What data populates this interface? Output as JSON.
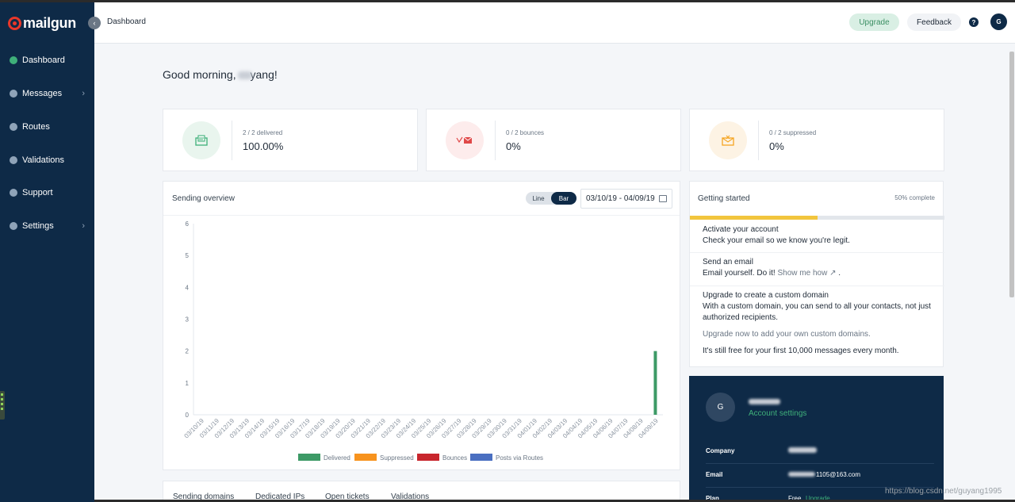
{
  "brand": {
    "name": "mailgun"
  },
  "sidebar": {
    "items": [
      {
        "label": "Dashboard",
        "icon": "dashboard-icon",
        "active": true
      },
      {
        "label": "Messages",
        "icon": "paper-plane-icon",
        "chevron": true
      },
      {
        "label": "Routes",
        "icon": "routes-icon"
      },
      {
        "label": "Validations",
        "icon": "validations-icon"
      },
      {
        "label": "Support",
        "icon": "help-circle-icon"
      },
      {
        "label": "Settings",
        "icon": "gear-icon",
        "chevron": true
      }
    ]
  },
  "header": {
    "breadcrumb": "Dashboard",
    "upgrade": "Upgrade",
    "feedback": "Feedback",
    "help": "?",
    "avatar": "G"
  },
  "greeting": {
    "prefix": "Good morning,",
    "suffix": "yang!"
  },
  "stats": [
    {
      "label": "2 / 2 delivered",
      "value": "100.00%",
      "icon": "delivered-envelope-icon",
      "color": "#3fb07a"
    },
    {
      "label": "0 / 2 bounces",
      "value": "0%",
      "icon": "bounced-envelope-icon",
      "color": "#e04848"
    },
    {
      "label": "0 / 2 suppressed",
      "value": "0%",
      "icon": "suppressed-envelope-icon",
      "color": "#f5a623"
    }
  ],
  "overview": {
    "title": "Sending overview",
    "toggle": [
      "Line",
      "Bar"
    ],
    "selected": "Bar",
    "date_range": "03/10/19 - 04/09/19"
  },
  "chart_data": {
    "type": "bar",
    "categories": [
      "03/10/19",
      "03/11/19",
      "03/12/19",
      "03/13/19",
      "03/14/19",
      "03/15/19",
      "03/16/19",
      "03/17/19",
      "03/18/19",
      "03/19/19",
      "03/20/19",
      "03/21/19",
      "03/22/19",
      "03/23/19",
      "03/24/19",
      "03/25/19",
      "03/26/19",
      "03/27/19",
      "03/28/19",
      "03/29/19",
      "03/30/19",
      "03/31/19",
      "04/01/19",
      "04/02/19",
      "04/03/19",
      "04/04/19",
      "04/05/19",
      "04/06/19",
      "04/07/19",
      "04/08/19",
      "04/09/19"
    ],
    "series": [
      {
        "name": "Delivered",
        "color": "#3d9a66",
        "values": [
          0,
          0,
          0,
          0,
          0,
          0,
          0,
          0,
          0,
          0,
          0,
          0,
          0,
          0,
          0,
          0,
          0,
          0,
          0,
          0,
          0,
          0,
          0,
          0,
          0,
          0,
          0,
          0,
          0,
          0,
          2
        ]
      },
      {
        "name": "Suppressed",
        "color": "#f7931e",
        "values": [
          0,
          0,
          0,
          0,
          0,
          0,
          0,
          0,
          0,
          0,
          0,
          0,
          0,
          0,
          0,
          0,
          0,
          0,
          0,
          0,
          0,
          0,
          0,
          0,
          0,
          0,
          0,
          0,
          0,
          0,
          0
        ]
      },
      {
        "name": "Bounces",
        "color": "#c8262d",
        "values": [
          0,
          0,
          0,
          0,
          0,
          0,
          0,
          0,
          0,
          0,
          0,
          0,
          0,
          0,
          0,
          0,
          0,
          0,
          0,
          0,
          0,
          0,
          0,
          0,
          0,
          0,
          0,
          0,
          0,
          0,
          0
        ]
      },
      {
        "name": "Posts via Routes",
        "color": "#4a6fc1",
        "values": [
          0,
          0,
          0,
          0,
          0,
          0,
          0,
          0,
          0,
          0,
          0,
          0,
          0,
          0,
          0,
          0,
          0,
          0,
          0,
          0,
          0,
          0,
          0,
          0,
          0,
          0,
          0,
          0,
          0,
          0,
          0
        ]
      }
    ],
    "yticks": [
      0,
      1,
      2,
      3,
      4,
      5,
      6
    ],
    "ylim": [
      0,
      6
    ],
    "legend": "bottom"
  },
  "getting_started": {
    "title": "Getting started",
    "progress_label": "50% complete",
    "progress": 0.5,
    "steps": [
      {
        "title": "Activate your account",
        "desc": "Check your email so we know you're legit."
      },
      {
        "title": "Send an email",
        "desc": "Email yourself. Do it!",
        "link": "Show me how",
        "end": "."
      },
      {
        "title": "Upgrade to create a custom domain",
        "desc": "With a custom domain, you can send to all your contacts, not just authorized recipients."
      }
    ],
    "upgrade_note": "Upgrade now to add your own custom domains.",
    "free_note": "It's still free for your first 10,000 messages every month."
  },
  "account": {
    "avatar": "G",
    "settings": "Account settings",
    "company_label": "Company",
    "email_label": "Email",
    "email_value": "1105@163.com",
    "plan_label": "Plan",
    "plan_value": "Free",
    "plan_link": "Upgrade"
  },
  "bottom_tabs": [
    "Sending domains",
    "Dedicated IPs",
    "Open tickets",
    "Validations"
  ],
  "watermark": "https://blog.csdn.net/guyang1995"
}
